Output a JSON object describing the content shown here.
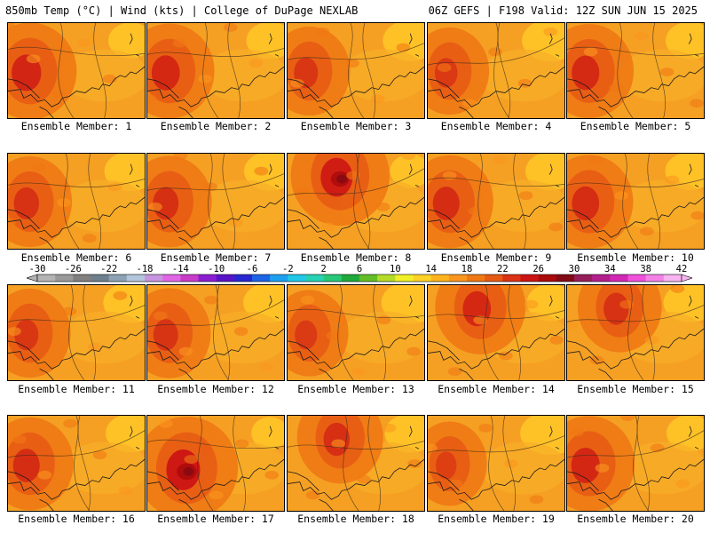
{
  "header": {
    "left": "850mb Temp (°C) | Wind (kts) | College of DuPage NEXLAB",
    "right": "06Z GEFS | F198 Valid: 12Z SUN JUN 15 2025"
  },
  "members": [
    {
      "label": "Ensemble Member: 1",
      "heat": 0.78,
      "hot_side": "west"
    },
    {
      "label": "Ensemble Member: 2",
      "heat": 0.72,
      "hot_side": "west"
    },
    {
      "label": "Ensemble Member: 3",
      "heat": 0.55,
      "hot_side": "west"
    },
    {
      "label": "Ensemble Member: 4",
      "heat": 0.5,
      "hot_side": "west"
    },
    {
      "label": "Ensemble Member: 5",
      "heat": 0.7,
      "hot_side": "west"
    },
    {
      "label": "Ensemble Member: 6",
      "heat": 0.6,
      "hot_side": "west"
    },
    {
      "label": "Ensemble Member: 7",
      "heat": 0.62,
      "hot_side": "west"
    },
    {
      "label": "Ensemble Member: 8",
      "heat": 0.88,
      "hot_side": "north"
    },
    {
      "label": "Ensemble Member: 9",
      "heat": 0.66,
      "hot_side": "west"
    },
    {
      "label": "Ensemble Member: 10",
      "heat": 0.68,
      "hot_side": "west"
    },
    {
      "label": "Ensemble Member: 11",
      "heat": 0.55,
      "hot_side": "west"
    },
    {
      "label": "Ensemble Member: 12",
      "heat": 0.58,
      "hot_side": "west"
    },
    {
      "label": "Ensemble Member: 13",
      "heat": 0.48,
      "hot_side": "west"
    },
    {
      "label": "Ensemble Member: 14",
      "heat": 0.72,
      "hot_side": "north"
    },
    {
      "label": "Ensemble Member: 15",
      "heat": 0.6,
      "hot_side": "north"
    },
    {
      "label": "Ensemble Member: 16",
      "heat": 0.66,
      "hot_side": "west"
    },
    {
      "label": "Ensemble Member: 17",
      "heat": 0.95,
      "hot_side": "center"
    },
    {
      "label": "Ensemble Member: 18",
      "heat": 0.64,
      "hot_side": "north"
    },
    {
      "label": "Ensemble Member: 19",
      "heat": 0.42,
      "hot_side": "west"
    },
    {
      "label": "Ensemble Member: 20",
      "heat": 0.74,
      "hot_side": "west"
    }
  ],
  "colorbar": {
    "tick_labels": [
      "-30",
      "-26",
      "-22",
      "-18",
      "-14",
      "-10",
      "-6",
      "-2",
      "2",
      "6",
      "10",
      "14",
      "18",
      "22",
      "26",
      "30",
      "34",
      "38",
      "42"
    ],
    "colors": [
      "#b4b4b4",
      "#9a9a9a",
      "#808080",
      "#6e7f8e",
      "#8ea2b6",
      "#b4c6dc",
      "#c896e0",
      "#e066e6",
      "#c83cc8",
      "#8c1ed2",
      "#5a14c8",
      "#2828d2",
      "#1e64e6",
      "#1ea0f0",
      "#23c8e6",
      "#28d2b4",
      "#28c878",
      "#1eaa3c",
      "#64be28",
      "#b4dc28",
      "#f0f028",
      "#ffd228",
      "#ffb41e",
      "#fa961e",
      "#f07814",
      "#e65a14",
      "#dc3214",
      "#cc1414",
      "#aa0a0a",
      "#820a14",
      "#961e5a",
      "#b41e8c",
      "#d228b4",
      "#f050dc",
      "#f482e6",
      "#f8b4f0"
    ]
  }
}
